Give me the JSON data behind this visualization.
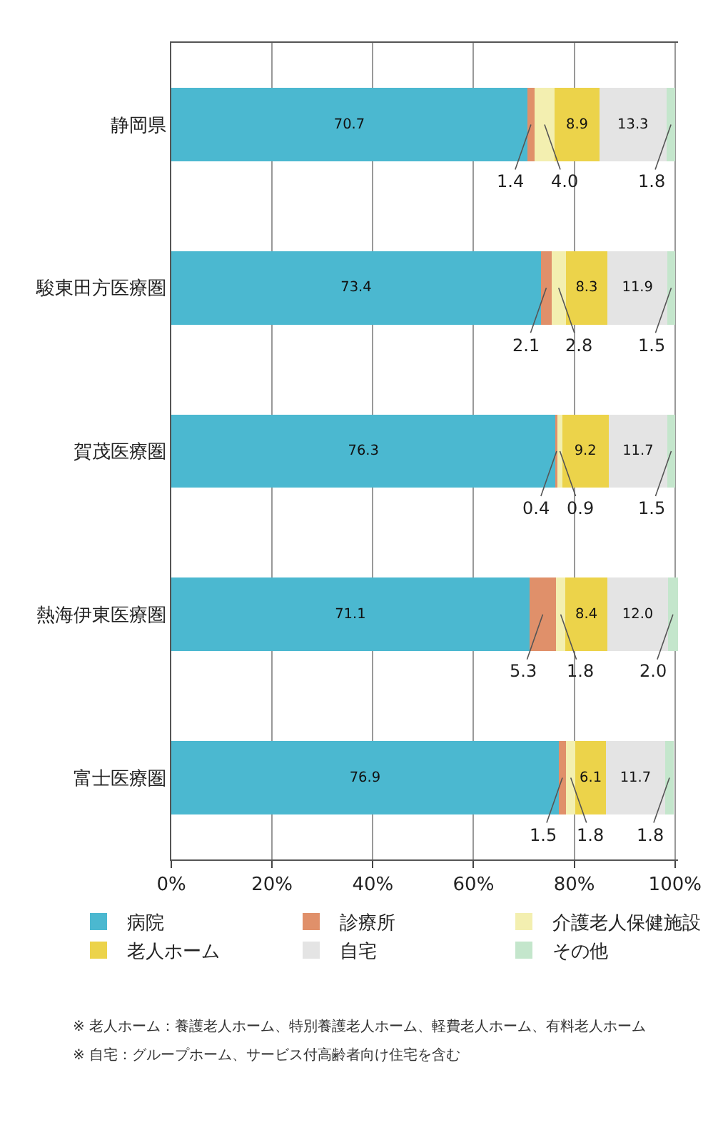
{
  "chart_data": {
    "type": "bar",
    "orientation": "horizontal",
    "stacked": true,
    "categories": [
      "静岡県",
      "駿東田方医療圏",
      "賀茂医療圏",
      "熱海伊東医療圏",
      "富士医療圏"
    ],
    "series": [
      {
        "name": "病院",
        "color": "#4bb8d0",
        "values": [
          70.7,
          73.4,
          76.3,
          71.1,
          76.9
        ],
        "value_labels": [
          "70.7",
          "73.4",
          "76.3",
          "71.1",
          "76.9"
        ]
      },
      {
        "name": "診療所",
        "color": "#e0906a",
        "values": [
          1.4,
          2.1,
          0.4,
          5.3,
          1.5
        ],
        "value_labels": [
          "1.4",
          "2.1",
          "0.4",
          "5.3",
          "1.5"
        ]
      },
      {
        "name": "介護老人保健施設",
        "color": "#f3efb0",
        "values": [
          4.0,
          2.8,
          0.9,
          1.8,
          1.8
        ],
        "value_labels": [
          "4.0",
          "2.8",
          "0.9",
          "1.8",
          "1.8"
        ]
      },
      {
        "name": "老人ホーム",
        "color": "#ecd34a",
        "values": [
          8.9,
          8.3,
          9.2,
          8.4,
          6.1
        ],
        "value_labels": [
          "8.9",
          "8.3",
          "9.2",
          "8.4",
          "6.1"
        ]
      },
      {
        "name": "自宅",
        "color": "#e4e4e4",
        "values": [
          13.3,
          11.9,
          11.7,
          12.0,
          11.7
        ],
        "value_labels": [
          "13.3",
          "11.9",
          "11.7",
          "12.0",
          "11.7"
        ]
      },
      {
        "name": "その他",
        "color": "#c4e6cc",
        "values": [
          1.8,
          1.5,
          1.5,
          2.0,
          1.8
        ],
        "value_labels": [
          "1.8",
          "1.5",
          "1.5",
          "2.0",
          "1.8"
        ]
      }
    ],
    "xlim": [
      0,
      100.6
    ],
    "xticks": [
      {
        "value": 0,
        "label": "0%"
      },
      {
        "value": 20,
        "label": "20%"
      },
      {
        "value": 40,
        "label": "40%"
      },
      {
        "value": 60,
        "label": "60%"
      },
      {
        "value": 80,
        "label": "80%"
      },
      {
        "value": 100,
        "label": "100%"
      }
    ],
    "grid": "x",
    "legend": "bottom",
    "annotations": [
      "※ 老人ホーム：養護老人ホーム、特別養護老人ホーム、軽費老人ホーム、有料老人ホーム",
      "※ 自宅：グループホーム、サービス付高齢者向け住宅を含む"
    ]
  }
}
